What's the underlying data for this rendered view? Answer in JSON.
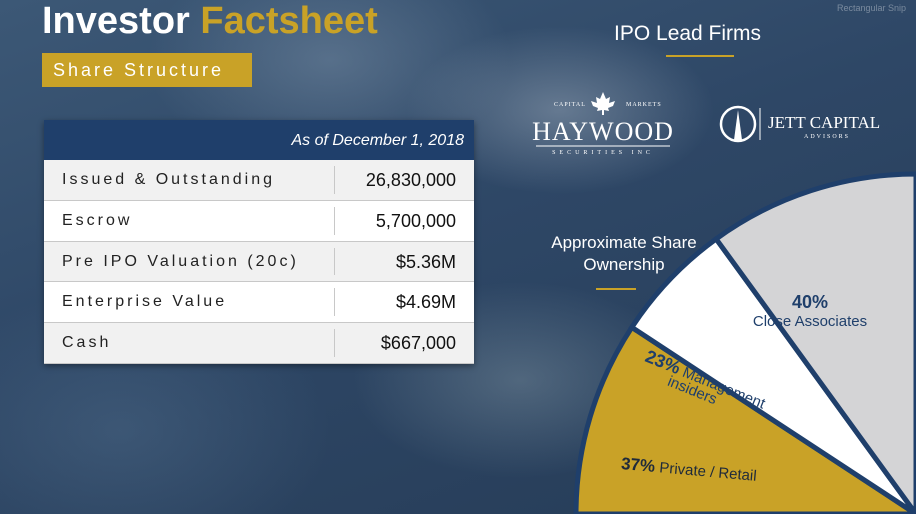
{
  "header": {
    "title_main": "Investor ",
    "title_accent": "Factsheet",
    "subtitle": "Share Structure",
    "watermark": "Rectangular Snip"
  },
  "table": {
    "as_of": "As of December 1, 2018",
    "rows": [
      {
        "label": "Issued & Outstanding",
        "value": "26,830,000"
      },
      {
        "label": "Escrow",
        "value": "5,700,000"
      },
      {
        "label": "Pre IPO Valuation (20c)",
        "value": "$5.36M"
      },
      {
        "label": "Enterprise Value",
        "value": "$4.69M"
      },
      {
        "label": "Cash",
        "value": "$667,000"
      }
    ]
  },
  "ipo": {
    "title": "IPO Lead Firms",
    "firm1": {
      "name": "HAYWOOD",
      "top_left": "CAPITAL",
      "top_right": "MARKETS",
      "bottom": "SECURITIES INC"
    },
    "firm2": {
      "name": "JETT CAPITAL",
      "sub": "ADVISORS"
    }
  },
  "ownership": {
    "title_line1": "Approximate Share",
    "title_line2": "Ownership",
    "colors": {
      "close": "#d4d4d6",
      "mgmt": "#ffffff",
      "retail": "#c9a227",
      "divider": "#1f3f6b"
    }
  },
  "chart_data": {
    "type": "pie",
    "title": "Approximate Share Ownership",
    "slices": [
      {
        "pct_label": "40%",
        "label": "Close Associates",
        "value": 40
      },
      {
        "pct_label": "23%",
        "label_1": "Management",
        "label_2": "insiders",
        "value": 23
      },
      {
        "pct_label": "37%",
        "label": "Private / Retail",
        "value": 37
      }
    ]
  }
}
